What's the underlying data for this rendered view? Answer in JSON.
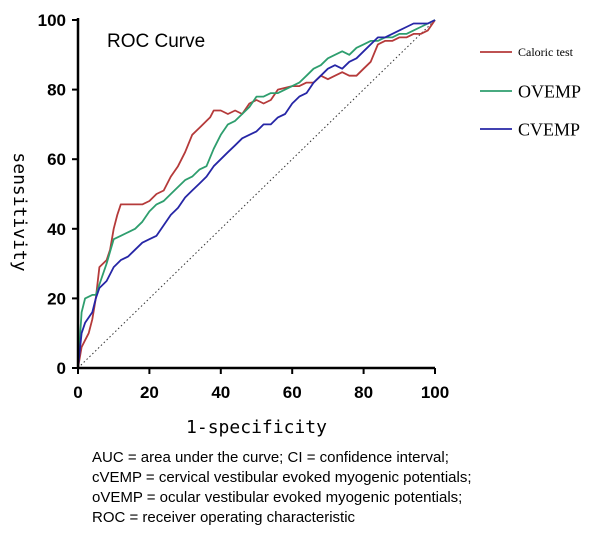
{
  "chart_data": {
    "type": "line",
    "title": "ROC Curve",
    "xlabel": "1-specificity",
    "ylabel": "sensitivity",
    "xlim": [
      0,
      100
    ],
    "ylim": [
      0,
      100
    ],
    "x_ticks": [
      "0",
      "20",
      "40",
      "60",
      "80",
      "100"
    ],
    "y_ticks": [
      "0",
      "20",
      "40",
      "60",
      "80",
      "100"
    ],
    "legend_position": "right",
    "grid": false,
    "reference_line": {
      "x": [
        0,
        100
      ],
      "y": [
        0,
        100
      ],
      "style": "dotted"
    },
    "series": [
      {
        "name": "Caloric test",
        "color": "#b53a3a",
        "x": [
          0,
          1,
          2,
          3,
          4,
          5,
          6,
          8,
          9,
          10,
          11,
          12,
          14,
          16,
          18,
          20,
          22,
          24,
          26,
          28,
          30,
          32,
          34,
          36,
          37,
          38,
          40,
          42,
          44,
          46,
          48,
          50,
          52,
          54,
          56,
          60,
          62,
          64,
          66,
          68,
          70,
          72,
          74,
          76,
          78,
          80,
          82,
          84,
          86,
          88,
          90,
          92,
          94,
          96,
          98,
          100
        ],
        "y": [
          0,
          6,
          8,
          10,
          14,
          20,
          29,
          31,
          34,
          40,
          44,
          47,
          47,
          47,
          47,
          48,
          50,
          51,
          55,
          58,
          62,
          67,
          69,
          71,
          72,
          74,
          74,
          73,
          74,
          73,
          76,
          77,
          76,
          77,
          80,
          81,
          81,
          82,
          82,
          84,
          83,
          84,
          85,
          84,
          84,
          86,
          88,
          93,
          94,
          94,
          95,
          95,
          96,
          96,
          97,
          100
        ]
      },
      {
        "name": "OVEMP",
        "color": "#2e9e6e",
        "x": [
          0,
          1,
          2,
          4,
          5,
          6,
          8,
          10,
          12,
          14,
          16,
          18,
          20,
          22,
          24,
          26,
          28,
          30,
          32,
          34,
          36,
          38,
          40,
          42,
          44,
          46,
          48,
          50,
          52,
          54,
          56,
          58,
          60,
          62,
          64,
          66,
          68,
          70,
          72,
          74,
          76,
          78,
          80,
          82,
          84,
          86,
          88,
          90,
          92,
          94,
          96,
          98,
          100
        ],
        "y": [
          0,
          16,
          20,
          21,
          21,
          24,
          30,
          37,
          38,
          39,
          40,
          42,
          45,
          47,
          48,
          50,
          52,
          54,
          55,
          57,
          58,
          63,
          67,
          70,
          71,
          73,
          75,
          78,
          78,
          79,
          79,
          80,
          81,
          82,
          84,
          86,
          87,
          89,
          90,
          91,
          90,
          92,
          93,
          94,
          94,
          95,
          95,
          96,
          96,
          97,
          98,
          99,
          100
        ]
      },
      {
        "name": "CVEMP",
        "color": "#2626a6",
        "x": [
          0,
          1,
          2,
          4,
          5,
          6,
          8,
          10,
          12,
          14,
          16,
          18,
          20,
          22,
          24,
          26,
          28,
          30,
          32,
          34,
          36,
          38,
          40,
          42,
          44,
          46,
          48,
          50,
          52,
          54,
          56,
          58,
          60,
          62,
          64,
          66,
          68,
          70,
          72,
          74,
          76,
          78,
          80,
          82,
          84,
          86,
          88,
          90,
          92,
          94,
          96,
          98,
          100
        ],
        "y": [
          0,
          10,
          13,
          16,
          20,
          23,
          25,
          29,
          31,
          32,
          34,
          36,
          37,
          38,
          41,
          44,
          46,
          49,
          51,
          53,
          55,
          58,
          60,
          62,
          64,
          66,
          67,
          68,
          70,
          70,
          72,
          73,
          76,
          78,
          79,
          82,
          84,
          86,
          87,
          86,
          88,
          89,
          91,
          93,
          95,
          95,
          96,
          97,
          98,
          99,
          99,
          99,
          100
        ]
      }
    ]
  },
  "footnote": [
    "AUC = area under the curve; CI = confidence interval;",
    "cVEMP = cervical vestibular evoked myogenic potentials;",
    "oVEMP = ocular vestibular evoked myogenic potentials;",
    "ROC = receiver operating characteristic"
  ]
}
